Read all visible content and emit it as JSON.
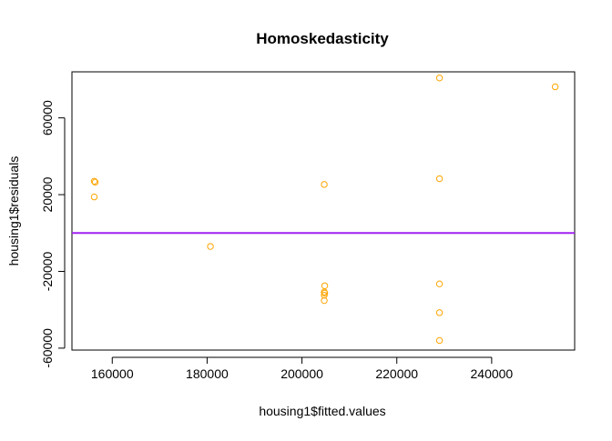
{
  "chart_data": {
    "type": "scatter",
    "title": "Homoskedasticity",
    "xlabel": "housing1$fitted.values",
    "ylabel": "housing1$residuals",
    "xlim": [
      151500,
      257500
    ],
    "ylim": [
      -61000,
      84000
    ],
    "xticks": [
      160000,
      180000,
      200000,
      220000,
      240000
    ],
    "xtick_labels": [
      "160000",
      "180000",
      "200000",
      "220000",
      "240000"
    ],
    "yticks": [
      -60000,
      -20000,
      20000,
      60000
    ],
    "ytick_labels": [
      "-60000",
      "-20000",
      "20000",
      "60000"
    ],
    "grid": false,
    "point_color": "#FFA500",
    "hline": {
      "y": 0,
      "color": "#A020F0"
    },
    "points": [
      {
        "x": 156200,
        "y": 27000
      },
      {
        "x": 156400,
        "y": 26500
      },
      {
        "x": 156200,
        "y": 18800
      },
      {
        "x": 180700,
        "y": -7000
      },
      {
        "x": 204700,
        "y": 25300
      },
      {
        "x": 204800,
        "y": -27500
      },
      {
        "x": 204700,
        "y": -30700
      },
      {
        "x": 204800,
        "y": -31300
      },
      {
        "x": 204700,
        "y": -32400
      },
      {
        "x": 204700,
        "y": -35200
      },
      {
        "x": 229000,
        "y": 80800
      },
      {
        "x": 229000,
        "y": 28300
      },
      {
        "x": 229000,
        "y": -26500
      },
      {
        "x": 229000,
        "y": -41500
      },
      {
        "x": 229000,
        "y": -56000
      },
      {
        "x": 253400,
        "y": 76200
      }
    ]
  }
}
